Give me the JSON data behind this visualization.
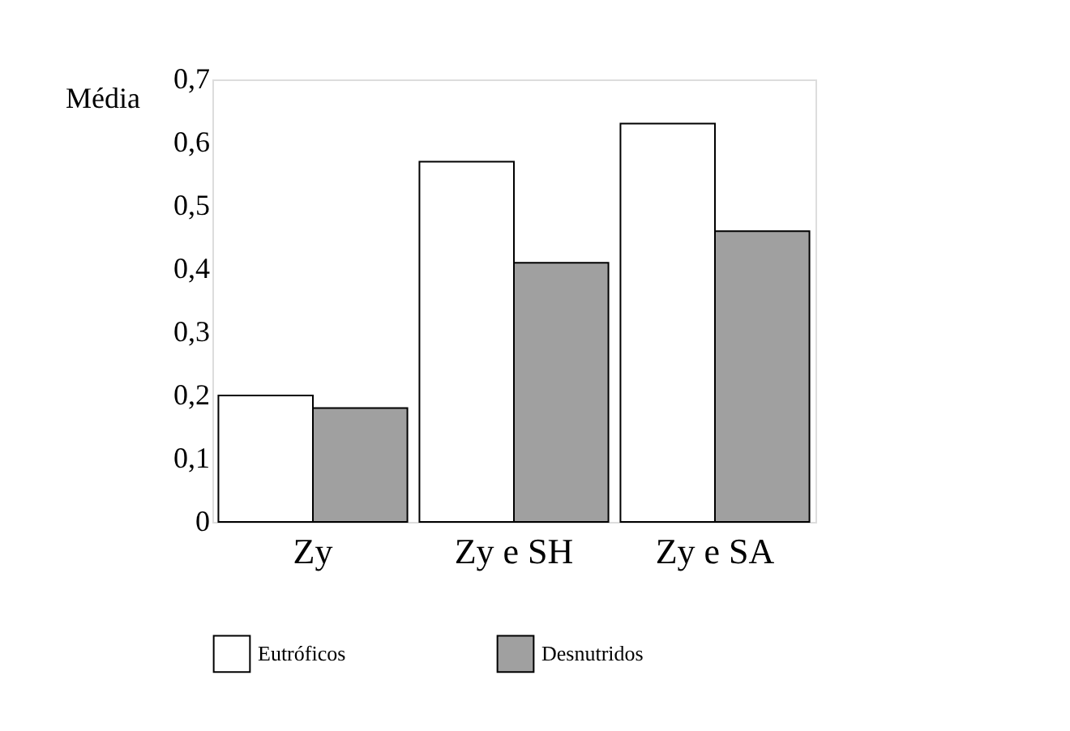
{
  "chart_data": {
    "type": "bar",
    "ylabel": "Média",
    "categories": [
      "Zy",
      "Zy e SH",
      "Zy e SA"
    ],
    "series": [
      {
        "name": "Eutróficos",
        "color": "#ffffff",
        "values": [
          0.2,
          0.57,
          0.63
        ]
      },
      {
        "name": "Desnutridos",
        "color": "#a0a0a0",
        "values": [
          0.18,
          0.41,
          0.46
        ]
      }
    ],
    "ylim": [
      0,
      0.7
    ],
    "yticks": [
      {
        "value": 0,
        "label": "0"
      },
      {
        "value": 0.1,
        "label": "0,1"
      },
      {
        "value": 0.2,
        "label": "0,2"
      },
      {
        "value": 0.3,
        "label": "0,3"
      },
      {
        "value": 0.4,
        "label": "0,4"
      },
      {
        "value": 0.5,
        "label": "0,5"
      },
      {
        "value": 0.6,
        "label": "0,6"
      },
      {
        "value": 0.7,
        "label": "0,7"
      }
    ],
    "grid": false,
    "legend": "bottom"
  }
}
